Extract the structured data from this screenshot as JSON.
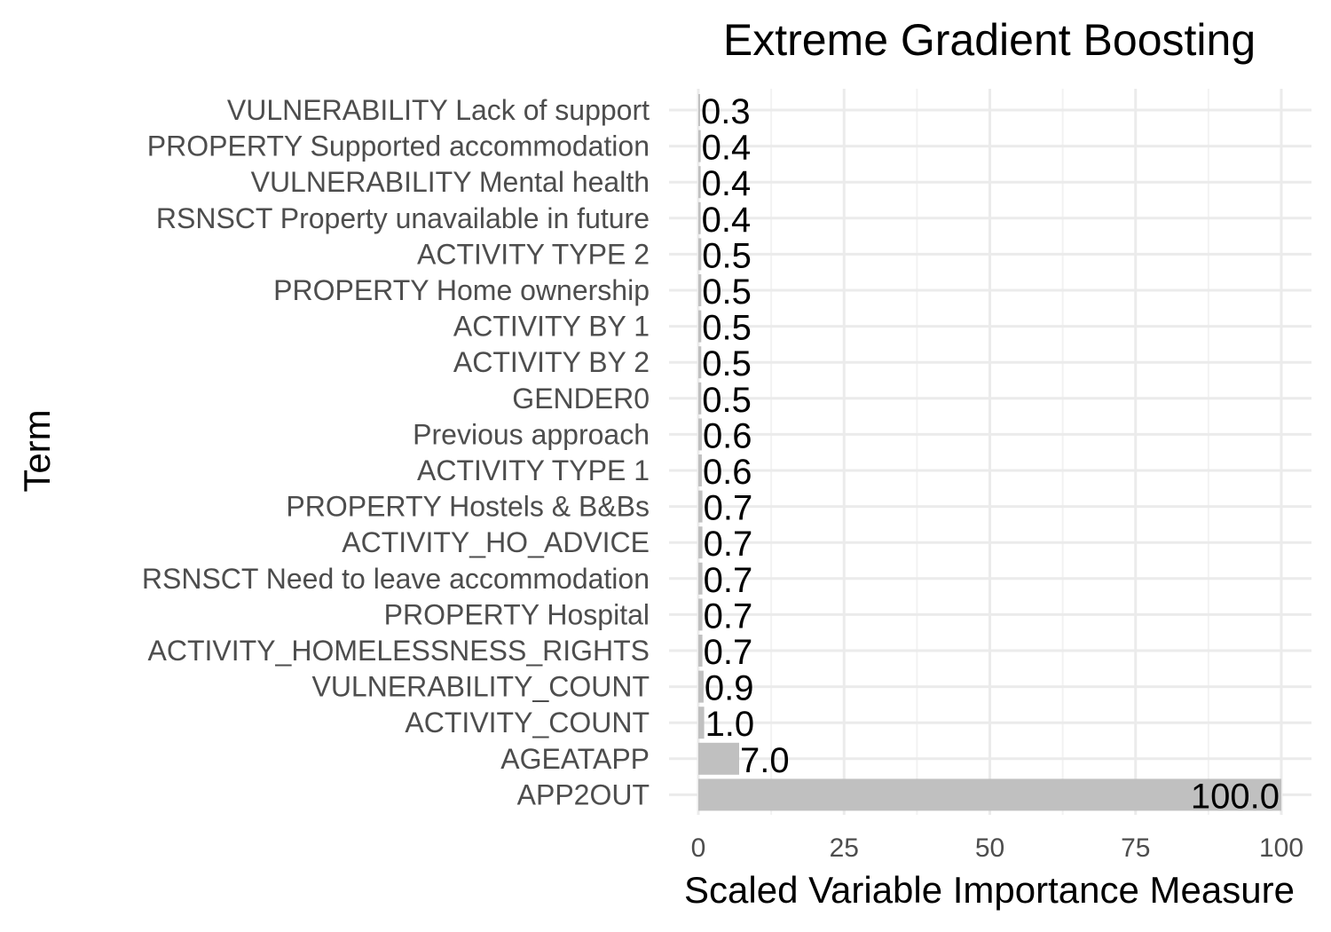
{
  "chart_data": {
    "type": "bar",
    "orientation": "horizontal",
    "title": "Extreme Gradient Boosting",
    "xlabel": "Scaled Variable Importance Measure",
    "ylabel": "Term",
    "xlim": [
      0,
      100
    ],
    "xticks": [
      0,
      25,
      50,
      75,
      100
    ],
    "grid": true,
    "legend": "none",
    "bar_color": "#c0c0c0",
    "categories": [
      "VULNERABILITY Lack of support",
      "PROPERTY Supported accommodation",
      "VULNERABILITY Mental health",
      "RSNSCT Property unavailable in future",
      "ACTIVITY TYPE 2",
      "PROPERTY Home ownership",
      "ACTIVITY BY 1",
      "ACTIVITY BY 2",
      "GENDER0",
      "Previous approach",
      "ACTIVITY TYPE 1",
      "PROPERTY Hostels & B&Bs",
      "ACTIVITY_HO_ADVICE",
      "RSNSCT Need to leave accommodation",
      "PROPERTY Hospital",
      "ACTIVITY_HOMELESSNESS_RIGHTS",
      "VULNERABILITY_COUNT",
      "ACTIVITY_COUNT",
      "AGEATAPP",
      "APP2OUT"
    ],
    "values": [
      0.3,
      0.4,
      0.4,
      0.4,
      0.5,
      0.5,
      0.5,
      0.5,
      0.5,
      0.6,
      0.6,
      0.7,
      0.7,
      0.7,
      0.7,
      0.7,
      0.9,
      1.0,
      7.0,
      100.0
    ],
    "value_labels": [
      "0.3",
      "0.4",
      "0.4",
      "0.4",
      "0.5",
      "0.5",
      "0.5",
      "0.5",
      "0.5",
      "0.6",
      "0.6",
      "0.7",
      "0.7",
      "0.7",
      "0.7",
      "0.7",
      "0.9",
      "1.0",
      "7.0",
      "100.0"
    ]
  }
}
